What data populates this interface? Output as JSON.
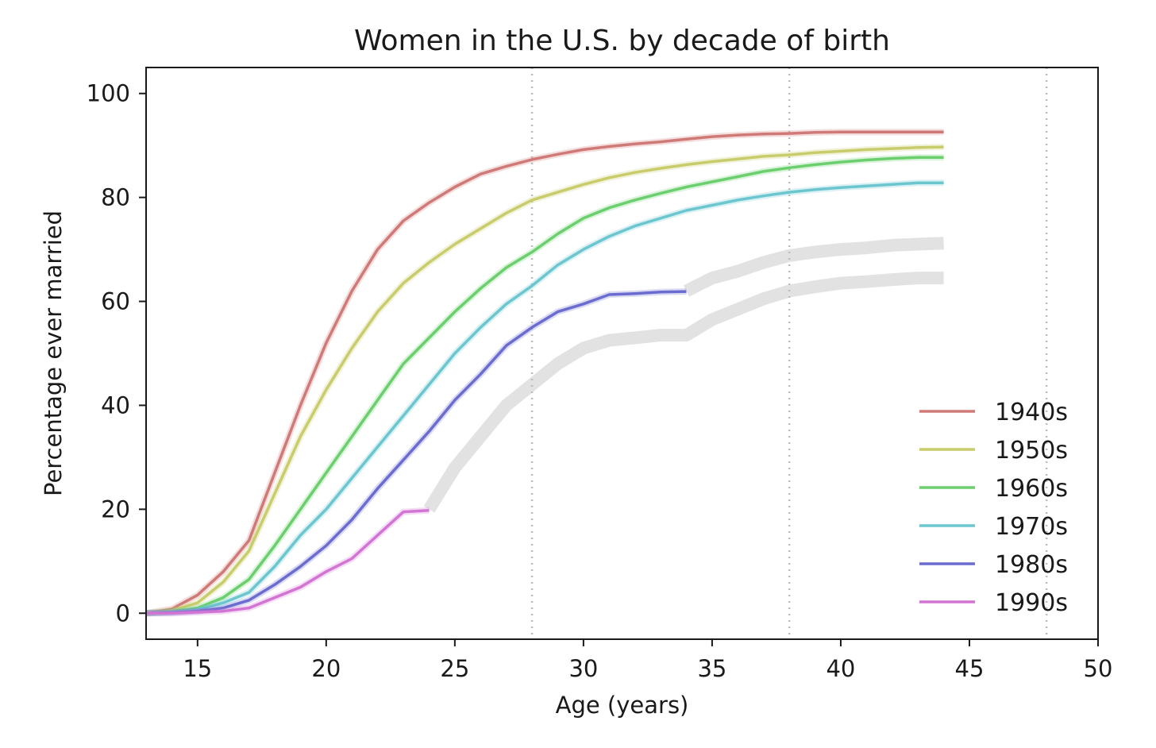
{
  "chart_data": {
    "type": "line",
    "title": "Women in the U.S. by decade of birth",
    "xlabel": "Age (years)",
    "ylabel": "Percentage ever married",
    "xlim": [
      13,
      50
    ],
    "ylim": [
      -5,
      105
    ],
    "xticks": [
      15,
      20,
      25,
      30,
      35,
      40,
      45,
      50
    ],
    "yticks": [
      0,
      20,
      40,
      60,
      80,
      100
    ],
    "vlines": [
      28,
      38,
      48
    ],
    "legend_position": "lower-right",
    "series": [
      {
        "name": "1940s",
        "color": "#d07a78",
        "x": [
          13,
          14,
          15,
          16,
          17,
          18,
          19,
          20,
          21,
          22,
          23,
          24,
          25,
          26,
          27,
          28,
          29,
          30,
          31,
          32,
          33,
          34,
          35,
          36,
          37,
          38,
          39,
          40,
          41,
          42,
          43,
          44
        ],
        "y": [
          0,
          0.8,
          3.5,
          8,
          14,
          27,
          40,
          52,
          62,
          70,
          75.5,
          79,
          82,
          84.5,
          86,
          87.3,
          88.3,
          89.2,
          89.8,
          90.3,
          90.7,
          91.2,
          91.7,
          92,
          92.2,
          92.3,
          92.5,
          92.6,
          92.6,
          92.6,
          92.6,
          92.6
        ]
      },
      {
        "name": "1950s",
        "color": "#c9cc6a",
        "x": [
          13,
          14,
          15,
          16,
          17,
          18,
          19,
          20,
          21,
          22,
          23,
          24,
          25,
          26,
          27,
          28,
          29,
          30,
          31,
          32,
          33,
          34,
          35,
          36,
          37,
          38,
          39,
          40,
          41,
          42,
          43,
          44
        ],
        "y": [
          0,
          0.5,
          2,
          6,
          12,
          23,
          34,
          43,
          51,
          58,
          63.5,
          67.5,
          71,
          74,
          77,
          79.5,
          81,
          82.5,
          83.8,
          84.8,
          85.6,
          86.3,
          86.9,
          87.4,
          87.9,
          88.2,
          88.6,
          88.9,
          89.2,
          89.4,
          89.6,
          89.7
        ]
      },
      {
        "name": "1960s",
        "color": "#6ccf6e",
        "x": [
          13,
          14,
          15,
          16,
          17,
          18,
          19,
          20,
          21,
          22,
          23,
          24,
          25,
          26,
          27,
          28,
          29,
          30,
          31,
          32,
          33,
          34,
          35,
          36,
          37,
          38,
          39,
          40,
          41,
          42,
          43,
          44
        ],
        "y": [
          0,
          0.3,
          1,
          3,
          6.5,
          13,
          20,
          27,
          34,
          41,
          48,
          53,
          58,
          62.5,
          66.5,
          69.5,
          73,
          76,
          78,
          79.5,
          80.8,
          82,
          83,
          84,
          85,
          85.7,
          86.3,
          86.8,
          87.2,
          87.5,
          87.7,
          87.7
        ]
      },
      {
        "name": "1970s",
        "color": "#6cc6cf",
        "x": [
          13,
          14,
          15,
          16,
          17,
          18,
          19,
          20,
          21,
          22,
          23,
          24,
          25,
          26,
          27,
          28,
          29,
          30,
          31,
          32,
          33,
          34,
          35,
          36,
          37,
          38,
          39,
          40,
          41,
          42,
          43,
          44
        ],
        "y": [
          0,
          0.2,
          0.7,
          2,
          4,
          9,
          15,
          20,
          26,
          32,
          38,
          44,
          50,
          55,
          59.5,
          63,
          67,
          70,
          72.5,
          74.5,
          76,
          77.5,
          78.5,
          79.5,
          80.3,
          81,
          81.5,
          81.9,
          82.2,
          82.5,
          82.8,
          82.8
        ]
      },
      {
        "name": "1980s",
        "color": "#6b6cd0",
        "x": [
          13,
          14,
          15,
          16,
          17,
          18,
          19,
          20,
          21,
          22,
          23,
          24,
          25,
          26,
          27,
          28,
          29,
          30,
          31,
          32,
          33,
          34
        ],
        "y": [
          0,
          0.1,
          0.4,
          1,
          2.5,
          5.5,
          9,
          13,
          18,
          24,
          29.5,
          35,
          41,
          46,
          51.5,
          55,
          58,
          59.5,
          61.3,
          61.5,
          61.8,
          61.9
        ]
      },
      {
        "name": "1990s",
        "color": "#d274d4",
        "x": [
          13,
          14,
          15,
          16,
          17,
          18,
          19,
          20,
          21,
          22,
          23,
          24
        ],
        "y": [
          0,
          0,
          0.2,
          0.4,
          1,
          3,
          5,
          8,
          10.5,
          15,
          19.5,
          19.8
        ]
      }
    ],
    "predicted_bands": [
      {
        "name": "1980s-projection",
        "x": [
          34,
          35,
          36,
          37,
          38,
          39,
          40,
          41,
          42,
          43,
          44
        ],
        "y": [
          62,
          64.5,
          65.8,
          67.5,
          68.8,
          69.5,
          70,
          70.3,
          70.8,
          71,
          71.2
        ]
      },
      {
        "name": "1990s-projection",
        "x": [
          24,
          25,
          26,
          27,
          28,
          29,
          30,
          31,
          32,
          33,
          34,
          35,
          36,
          37,
          38,
          39,
          40,
          41,
          42,
          43,
          44
        ],
        "y": [
          20,
          28,
          34,
          40,
          44,
          48,
          51,
          52.5,
          53,
          53.5,
          53.5,
          56.5,
          58.5,
          60.5,
          62,
          62.8,
          63.5,
          63.8,
          64.2,
          64.5,
          64.5
        ]
      }
    ]
  }
}
